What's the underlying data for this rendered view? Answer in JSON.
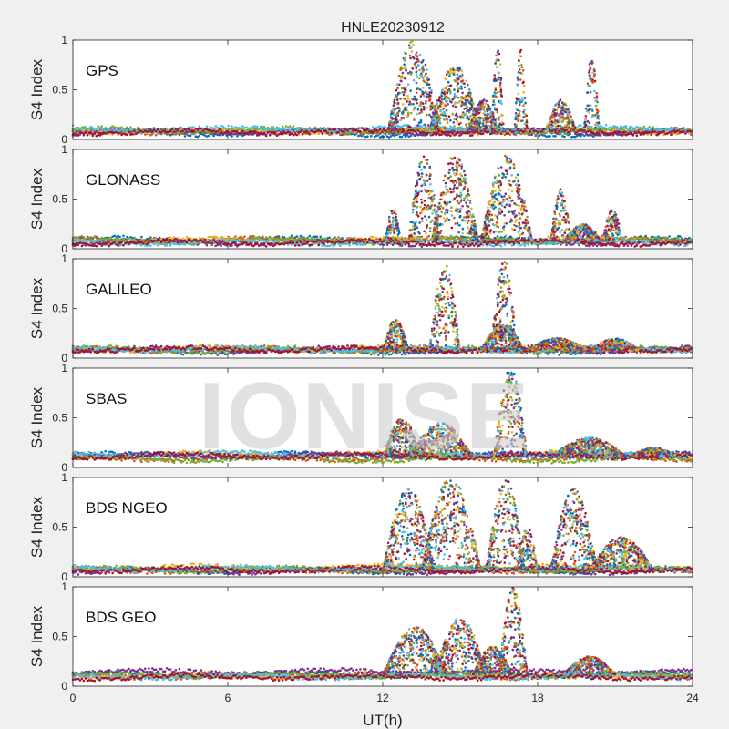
{
  "figure": {
    "title": "HNLE20230912",
    "xlabel": "UT(h)",
    "watermark": "IONISE"
  },
  "colors": [
    "#0072BD",
    "#D95319",
    "#EDB120",
    "#7E2F8E",
    "#77AC30",
    "#4DBEEE",
    "#A2142F"
  ],
  "chart_data": [
    {
      "type": "scatter",
      "label": "GPS",
      "ylabel": "S4 Index",
      "xlim": [
        0,
        24
      ],
      "ylim": [
        0,
        1
      ],
      "xticks": [
        "0",
        "6",
        "12",
        "18",
        "24"
      ],
      "yticks": [
        "0",
        "0.5",
        "1"
      ],
      "grid": false,
      "series_colors": 7,
      "baseline": 0.08,
      "events": [
        {
          "x0": 12.2,
          "x1": 14.2,
          "peak": 1.0
        },
        {
          "x0": 13.8,
          "x1": 15.8,
          "peak": 0.75
        },
        {
          "x0": 16.2,
          "x1": 16.7,
          "peak": 0.95
        },
        {
          "x0": 17.1,
          "x1": 17.6,
          "peak": 0.9
        },
        {
          "x0": 18.3,
          "x1": 19.5,
          "peak": 0.4
        },
        {
          "x0": 19.8,
          "x1": 20.4,
          "peak": 0.85
        },
        {
          "x0": 15.3,
          "x1": 16.5,
          "peak": 0.4
        }
      ]
    },
    {
      "type": "scatter",
      "label": "GLONASS",
      "ylabel": "S4 Index",
      "xlim": [
        0,
        24
      ],
      "ylim": [
        0,
        1
      ],
      "xticks": [
        "0",
        "6",
        "12",
        "18",
        "24"
      ],
      "yticks": [
        "0",
        "0.5",
        "1"
      ],
      "grid": false,
      "series_colors": 7,
      "baseline": 0.07,
      "events": [
        {
          "x0": 12.1,
          "x1": 12.7,
          "peak": 0.42
        },
        {
          "x0": 13.0,
          "x1": 14.2,
          "peak": 1.0
        },
        {
          "x0": 13.9,
          "x1": 15.7,
          "peak": 0.95
        },
        {
          "x0": 15.8,
          "x1": 17.8,
          "peak": 0.95
        },
        {
          "x0": 18.5,
          "x1": 19.3,
          "peak": 0.6
        },
        {
          "x0": 20.5,
          "x1": 21.3,
          "peak": 0.4
        },
        {
          "x0": 19.0,
          "x1": 20.5,
          "peak": 0.25
        }
      ]
    },
    {
      "type": "scatter",
      "label": "GALILEO",
      "ylabel": "S4 Index",
      "xlim": [
        0,
        24
      ],
      "ylim": [
        0,
        1
      ],
      "xticks": [
        "0",
        "6",
        "12",
        "18",
        "24"
      ],
      "yticks": [
        "0",
        "0.5",
        "1"
      ],
      "grid": false,
      "series_colors": 7,
      "baseline": 0.07,
      "events": [
        {
          "x0": 12.0,
          "x1": 13.0,
          "peak": 0.4
        },
        {
          "x0": 13.8,
          "x1": 15.0,
          "peak": 0.95
        },
        {
          "x0": 16.2,
          "x1": 17.2,
          "peak": 1.0
        },
        {
          "x0": 15.8,
          "x1": 17.5,
          "peak": 0.35
        },
        {
          "x0": 17.5,
          "x1": 20.0,
          "peak": 0.2
        },
        {
          "x0": 20.0,
          "x1": 22.0,
          "peak": 0.2
        }
      ]
    },
    {
      "type": "scatter",
      "label": "SBAS",
      "ylabel": "S4 Index",
      "xlim": [
        0,
        24
      ],
      "ylim": [
        0,
        1
      ],
      "xticks": [
        "0",
        "6",
        "12",
        "18",
        "24"
      ],
      "yticks": [
        "0",
        "0.5",
        "1"
      ],
      "grid": false,
      "series_colors": 7,
      "baseline": 0.1,
      "events": [
        {
          "x0": 12.0,
          "x1": 13.5,
          "peak": 0.5
        },
        {
          "x0": 13.0,
          "x1": 15.5,
          "peak": 0.45
        },
        {
          "x0": 16.3,
          "x1": 17.6,
          "peak": 1.0
        },
        {
          "x0": 18.5,
          "x1": 21.5,
          "peak": 0.3
        },
        {
          "x0": 21.5,
          "x1": 23.5,
          "peak": 0.2
        }
      ]
    },
    {
      "type": "scatter",
      "label": "BDS NGEO",
      "ylabel": "S4 Index",
      "xlim": [
        0,
        24
      ],
      "ylim": [
        0,
        1
      ],
      "xticks": [
        "0",
        "6",
        "12",
        "18",
        "24"
      ],
      "yticks": [
        "0",
        "0.5",
        "1"
      ],
      "grid": false,
      "series_colors": 7,
      "baseline": 0.07,
      "events": [
        {
          "x0": 12.0,
          "x1": 14.0,
          "peak": 0.9
        },
        {
          "x0": 13.5,
          "x1": 15.8,
          "peak": 1.0
        },
        {
          "x0": 16.0,
          "x1": 17.5,
          "peak": 1.0
        },
        {
          "x0": 17.2,
          "x1": 18.0,
          "peak": 0.5
        },
        {
          "x0": 18.5,
          "x1": 20.3,
          "peak": 0.9
        },
        {
          "x0": 20.0,
          "x1": 22.5,
          "peak": 0.4
        }
      ]
    },
    {
      "type": "scatter",
      "label": "BDS GEO",
      "ylabel": "S4 Index",
      "xlim": [
        0,
        24
      ],
      "ylim": [
        0,
        1
      ],
      "xticks": [
        "0",
        "6",
        "12",
        "18",
        "24"
      ],
      "yticks": [
        "0",
        "0.5",
        "1"
      ],
      "grid": false,
      "series_colors": 7,
      "baseline": 0.12,
      "events": [
        {
          "x0": 12.0,
          "x1": 14.5,
          "peak": 0.6
        },
        {
          "x0": 14.0,
          "x1": 16.0,
          "peak": 0.7
        },
        {
          "x0": 16.5,
          "x1": 17.6,
          "peak": 1.0
        },
        {
          "x0": 15.5,
          "x1": 17.0,
          "peak": 0.4
        },
        {
          "x0": 19.0,
          "x1": 21.0,
          "peak": 0.3
        }
      ]
    }
  ]
}
